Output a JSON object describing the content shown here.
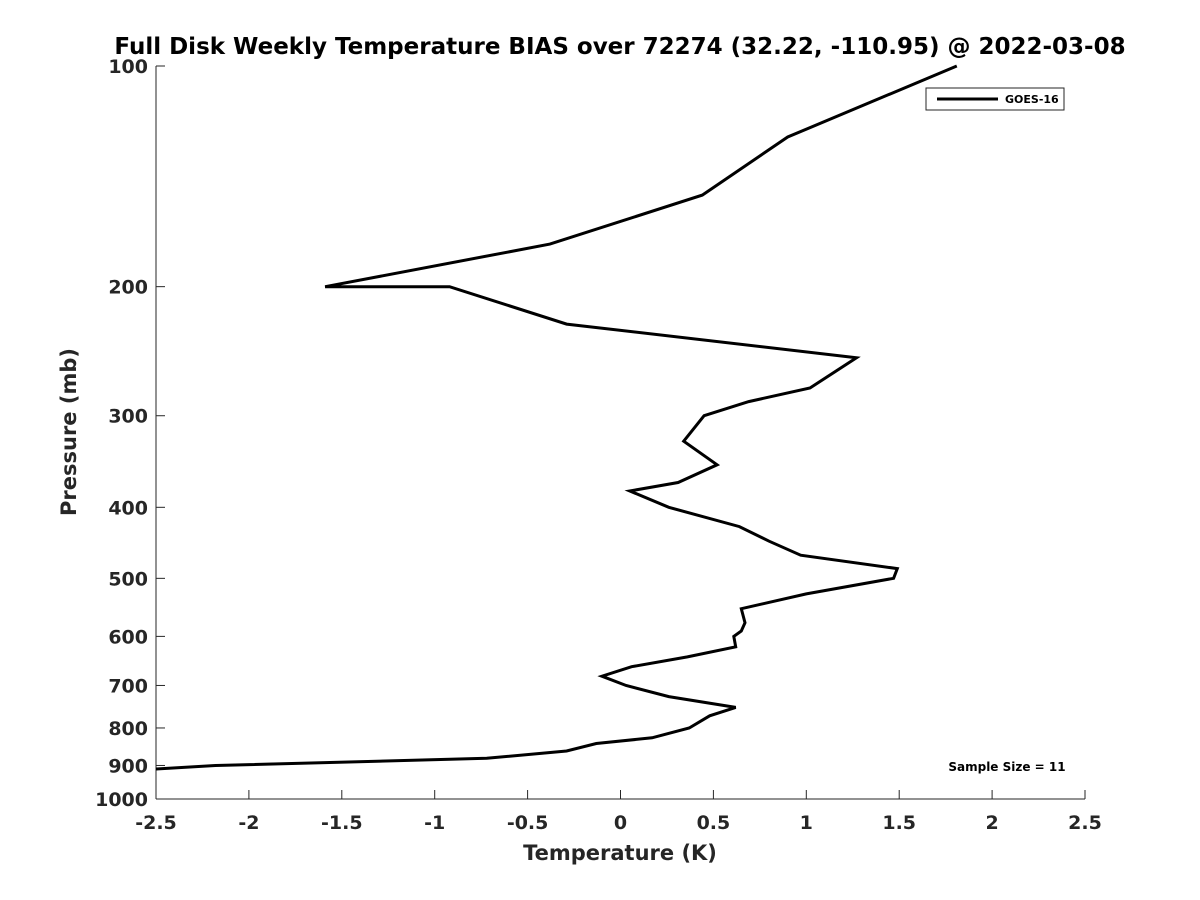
{
  "chart_data": {
    "type": "line",
    "title": "Full Disk Weekly Temperature BIAS over 72274 (32.22, -110.95) @ 2022-03-08",
    "xlabel": "Temperature (K)",
    "ylabel": "Pressure (mb)",
    "xlim": [
      -2.5,
      2.5
    ],
    "ylim": [
      100,
      1000
    ],
    "yscale": "log",
    "yreversed": true,
    "grid": false,
    "legend_position": "top-right",
    "x_ticks": [
      {
        "value": -2.5,
        "label": "-2.5"
      },
      {
        "value": -2,
        "label": "-2"
      },
      {
        "value": -1.5,
        "label": "-1.5"
      },
      {
        "value": -1,
        "label": "-1"
      },
      {
        "value": -0.5,
        "label": "-0.5"
      },
      {
        "value": 0,
        "label": "0"
      },
      {
        "value": 0.5,
        "label": "0.5"
      },
      {
        "value": 1,
        "label": "1"
      },
      {
        "value": 1.5,
        "label": "1.5"
      },
      {
        "value": 2,
        "label": "2"
      },
      {
        "value": 2.5,
        "label": "2.5"
      }
    ],
    "y_ticks": [
      {
        "value": 100,
        "label": "100"
      },
      {
        "value": 200,
        "label": "200"
      },
      {
        "value": 300,
        "label": "300"
      },
      {
        "value": 400,
        "label": "400"
      },
      {
        "value": 500,
        "label": "500"
      },
      {
        "value": 600,
        "label": "600"
      },
      {
        "value": 700,
        "label": "700"
      },
      {
        "value": 800,
        "label": "800"
      },
      {
        "value": 900,
        "label": "900"
      },
      {
        "value": 1000,
        "label": "1000"
      }
    ],
    "series": [
      {
        "name": "GOES-16",
        "color": "#000000",
        "points": [
          {
            "x": 1.81,
            "p": 100
          },
          {
            "x": 0.9,
            "p": 125
          },
          {
            "x": 0.44,
            "p": 150
          },
          {
            "x": -0.38,
            "p": 175
          },
          {
            "x": -1.59,
            "p": 200,
            "p_note": ""
          },
          {
            "x": -0.92,
            "p": 200
          },
          {
            "x": -0.29,
            "p": 225
          },
          {
            "x": 1.27,
            "p": 250
          },
          {
            "x": 1.02,
            "p": 275
          },
          {
            "x": 0.69,
            "p": 287
          },
          {
            "x": 0.45,
            "p": 300
          },
          {
            "x": 0.34,
            "p": 325
          },
          {
            "x": 0.52,
            "p": 350
          },
          {
            "x": 0.31,
            "p": 370
          },
          {
            "x": 0.05,
            "p": 380
          },
          {
            "x": 0.26,
            "p": 400
          },
          {
            "x": 0.64,
            "p": 425
          },
          {
            "x": 0.8,
            "p": 445
          },
          {
            "x": 0.97,
            "p": 465
          },
          {
            "x": 1.49,
            "p": 485
          },
          {
            "x": 1.47,
            "p": 500
          },
          {
            "x": 1.0,
            "p": 525
          },
          {
            "x": 0.65,
            "p": 550
          },
          {
            "x": 0.67,
            "p": 575
          },
          {
            "x": 0.65,
            "p": 590
          },
          {
            "x": 0.61,
            "p": 600
          },
          {
            "x": 0.62,
            "p": 620
          },
          {
            "x": 0.36,
            "p": 640
          },
          {
            "x": 0.06,
            "p": 660
          },
          {
            "x": -0.1,
            "p": 680
          },
          {
            "x": 0.03,
            "p": 700
          },
          {
            "x": 0.26,
            "p": 725
          },
          {
            "x": 0.62,
            "p": 750
          },
          {
            "x": 0.48,
            "p": 770
          },
          {
            "x": 0.37,
            "p": 800
          },
          {
            "x": 0.17,
            "p": 825
          },
          {
            "x": -0.13,
            "p": 840
          },
          {
            "x": -0.29,
            "p": 860
          },
          {
            "x": -0.72,
            "p": 880
          },
          {
            "x": -2.18,
            "p": 900
          },
          {
            "x": -2.5,
            "p": 910
          }
        ]
      }
    ],
    "annotation": "Sample Size = 11"
  }
}
